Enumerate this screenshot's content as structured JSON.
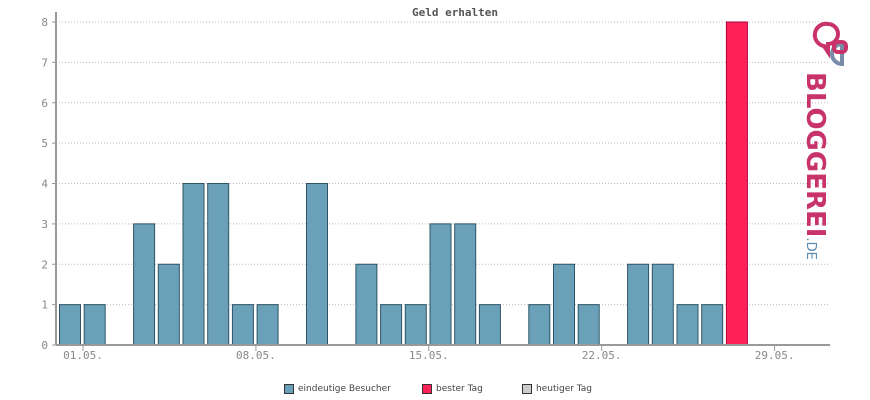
{
  "chart_data": {
    "type": "bar",
    "title": "Geld erhalten",
    "x_tick_labels": [
      "01.05.",
      "08.05.",
      "15.05.",
      "22.05.",
      "29.05."
    ],
    "x_tick_days": [
      1,
      8,
      15,
      22,
      29
    ],
    "ylim": [
      0,
      8
    ],
    "y_ticks": [
      "0",
      "1",
      "2",
      "3",
      "4",
      "5",
      "6",
      "7",
      "8"
    ],
    "grid": true,
    "series": [
      {
        "name": "eindeutige Besucher",
        "days": [
          1,
          2,
          4,
          5,
          6,
          7,
          8,
          9,
          11,
          13,
          14,
          15,
          16,
          17,
          18,
          20,
          21,
          22,
          24,
          25,
          26,
          27
        ],
        "values": [
          1,
          1,
          3,
          2,
          4,
          4,
          1,
          1,
          4,
          2,
          1,
          1,
          3,
          3,
          1,
          1,
          2,
          1,
          2,
          2,
          1,
          1
        ]
      },
      {
        "name": "bester Tag",
        "days": [
          28
        ],
        "values": [
          8
        ]
      }
    ],
    "legend_placement": "bottom"
  },
  "legend": {
    "items": [
      {
        "label": "eindeutige Besucher",
        "color": "#6aa0b8"
      },
      {
        "label": "bester Tag",
        "color": "#ff2259"
      },
      {
        "label": "heutiger Tag",
        "color": "#cccccc"
      }
    ]
  },
  "colors": {
    "visitors": "#6aa0b8",
    "best_day": "#ff2259",
    "today": "#cccccc",
    "grid": "#bbbbbb",
    "axis": "#999999"
  },
  "logo": {
    "text_main": "BLOGGEREI",
    "text_suffix": ".DE"
  }
}
